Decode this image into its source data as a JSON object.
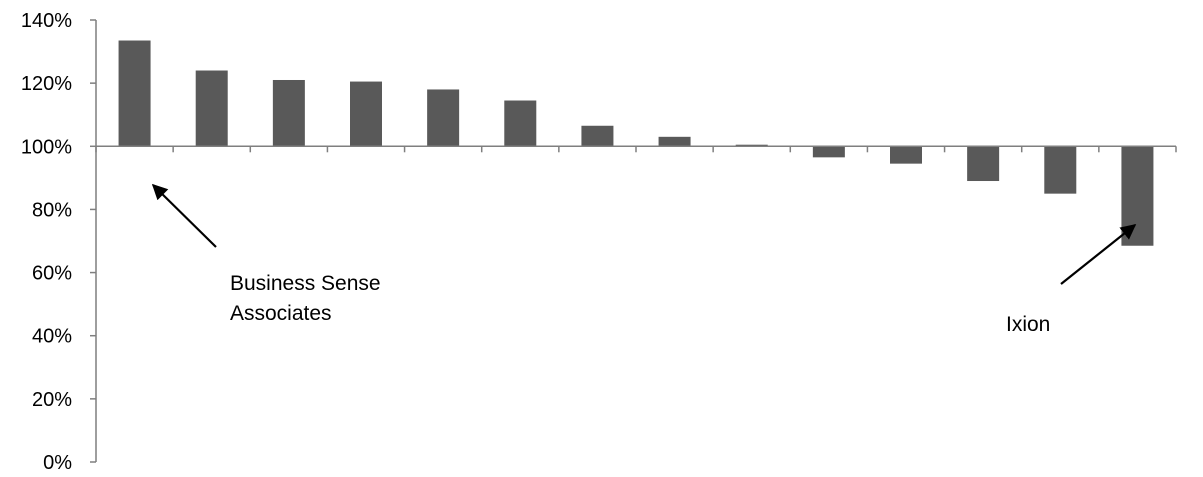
{
  "chart_data": {
    "type": "bar",
    "title": "",
    "xlabel": "",
    "ylabel": "",
    "baseline": 100,
    "ylim": [
      0,
      140
    ],
    "yticks": [
      0,
      20,
      40,
      60,
      80,
      100,
      120,
      140
    ],
    "ytick_labels": [
      "0%",
      "20%",
      "40%",
      "60%",
      "80%",
      "100%",
      "120%",
      "140%"
    ],
    "values": [
      133.5,
      124,
      121,
      120.5,
      118,
      114.5,
      106.5,
      103,
      100.5,
      96.5,
      94.5,
      89,
      85,
      68.5
    ],
    "bar_color": "#595959",
    "axis_color": "#7f7f7f",
    "grid": false,
    "annotations": [
      {
        "lines": [
          "Business Sense",
          "Associates"
        ],
        "points_to_bar": 0
      },
      {
        "lines": [
          "Ixion"
        ],
        "points_to_bar": 13
      }
    ]
  }
}
